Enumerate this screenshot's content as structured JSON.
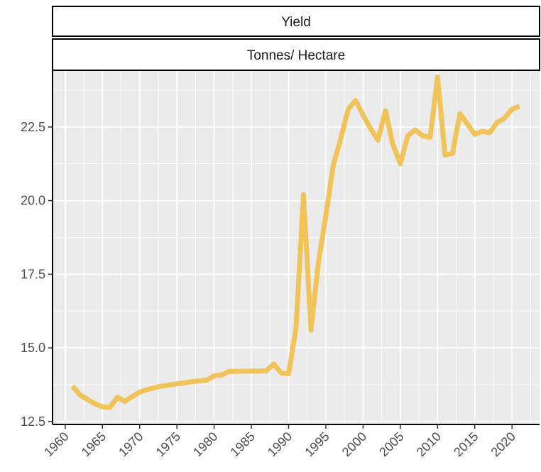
{
  "chart_data": {
    "type": "line",
    "facet_strips": [
      "Yield",
      "Tonnes/ Hectare"
    ],
    "title": "",
    "xlabel": "",
    "ylabel": "",
    "xlim": [
      1958.3,
      2023.7
    ],
    "ylim": [
      12.4,
      24.4
    ],
    "x_ticks": [
      1960,
      1965,
      1970,
      1975,
      1980,
      1985,
      1990,
      1995,
      2000,
      2005,
      2010,
      2015,
      2020
    ],
    "x_tick_labels": [
      "1960",
      "1965",
      "1970",
      "1975",
      "1980",
      "1985",
      "1990",
      "1995",
      "2000",
      "2005",
      "2010",
      "2015",
      "2020"
    ],
    "y_ticks": [
      12.5,
      15.0,
      17.5,
      20.0,
      22.5
    ],
    "y_tick_labels": [
      "12.5",
      "15.0",
      "17.5",
      "20.0",
      "22.5"
    ],
    "grid": true,
    "panel_background": "#ebebeb",
    "grid_color": "#ffffff",
    "series": [
      {
        "color": "#f0c45a",
        "x": [
          1961,
          1962,
          1963,
          1964,
          1965,
          1966,
          1967,
          1968,
          1969,
          1970,
          1971,
          1972,
          1973,
          1974,
          1975,
          1976,
          1977,
          1978,
          1979,
          1980,
          1981,
          1982,
          1983,
          1984,
          1985,
          1986,
          1987,
          1988,
          1989,
          1990,
          1991,
          1992,
          1993,
          1994,
          1995,
          1996,
          1997,
          1998,
          1999,
          2000,
          2001,
          2002,
          2003,
          2004,
          2005,
          2006,
          2007,
          2008,
          2009,
          2010,
          2011,
          2012,
          2013,
          2014,
          2015,
          2016,
          2017,
          2018,
          2019,
          2020,
          2021
        ],
        "y": [
          13.7,
          13.4,
          13.25,
          13.1,
          13.0,
          12.98,
          13.32,
          13.18,
          13.35,
          13.5,
          13.58,
          13.65,
          13.7,
          13.74,
          13.78,
          13.81,
          13.85,
          13.88,
          13.9,
          14.05,
          14.08,
          14.2,
          14.2,
          14.21,
          14.21,
          14.21,
          14.22,
          14.45,
          14.15,
          14.12,
          15.7,
          20.2,
          15.6,
          17.9,
          19.5,
          21.2,
          22.1,
          23.1,
          23.4,
          22.9,
          22.45,
          22.05,
          23.05,
          21.9,
          21.25,
          22.2,
          22.4,
          22.2,
          22.15,
          24.2,
          21.55,
          21.6,
          22.95,
          22.6,
          22.25,
          22.35,
          22.3,
          22.65,
          22.8,
          23.1,
          23.2
        ]
      }
    ]
  }
}
